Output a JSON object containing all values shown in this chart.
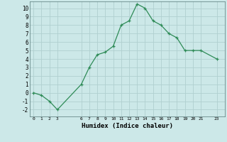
{
  "x": [
    0,
    1,
    2,
    3,
    6,
    7,
    8,
    9,
    10,
    11,
    12,
    13,
    14,
    15,
    16,
    17,
    18,
    19,
    20,
    21,
    23
  ],
  "y": [
    0.0,
    -0.3,
    -1.0,
    -2.0,
    1.0,
    3.0,
    4.5,
    4.8,
    5.5,
    8.0,
    8.5,
    10.5,
    10.0,
    8.5,
    8.0,
    7.0,
    6.5,
    5.0,
    5.0,
    5.0,
    4.0
  ],
  "line_color": "#2e8b57",
  "marker_color": "#2e8b57",
  "bg_color": "#cce8e8",
  "grid_color": "#b0d0d0",
  "xlabel": "Humidex (Indice chaleur)",
  "xlim": [
    -0.5,
    24.0
  ],
  "ylim": [
    -2.8,
    10.8
  ],
  "xticks": [
    0,
    1,
    2,
    3,
    6,
    7,
    8,
    9,
    10,
    11,
    12,
    13,
    14,
    15,
    16,
    17,
    18,
    19,
    20,
    21,
    23
  ],
  "yticks": [
    -2,
    -1,
    0,
    1,
    2,
    3,
    4,
    5,
    6,
    7,
    8,
    9,
    10
  ],
  "xtick_labels": [
    "0",
    "1",
    "2",
    "3",
    "6",
    "7",
    "8",
    "9",
    "10",
    "11",
    "12",
    "13",
    "14",
    "15",
    "16",
    "17",
    "18",
    "19",
    "20",
    "21",
    "23"
  ],
  "ytick_labels": [
    "-2",
    "-1",
    "0",
    "1",
    "2",
    "3",
    "4",
    "5",
    "6",
    "7",
    "8",
    "9",
    "10"
  ]
}
